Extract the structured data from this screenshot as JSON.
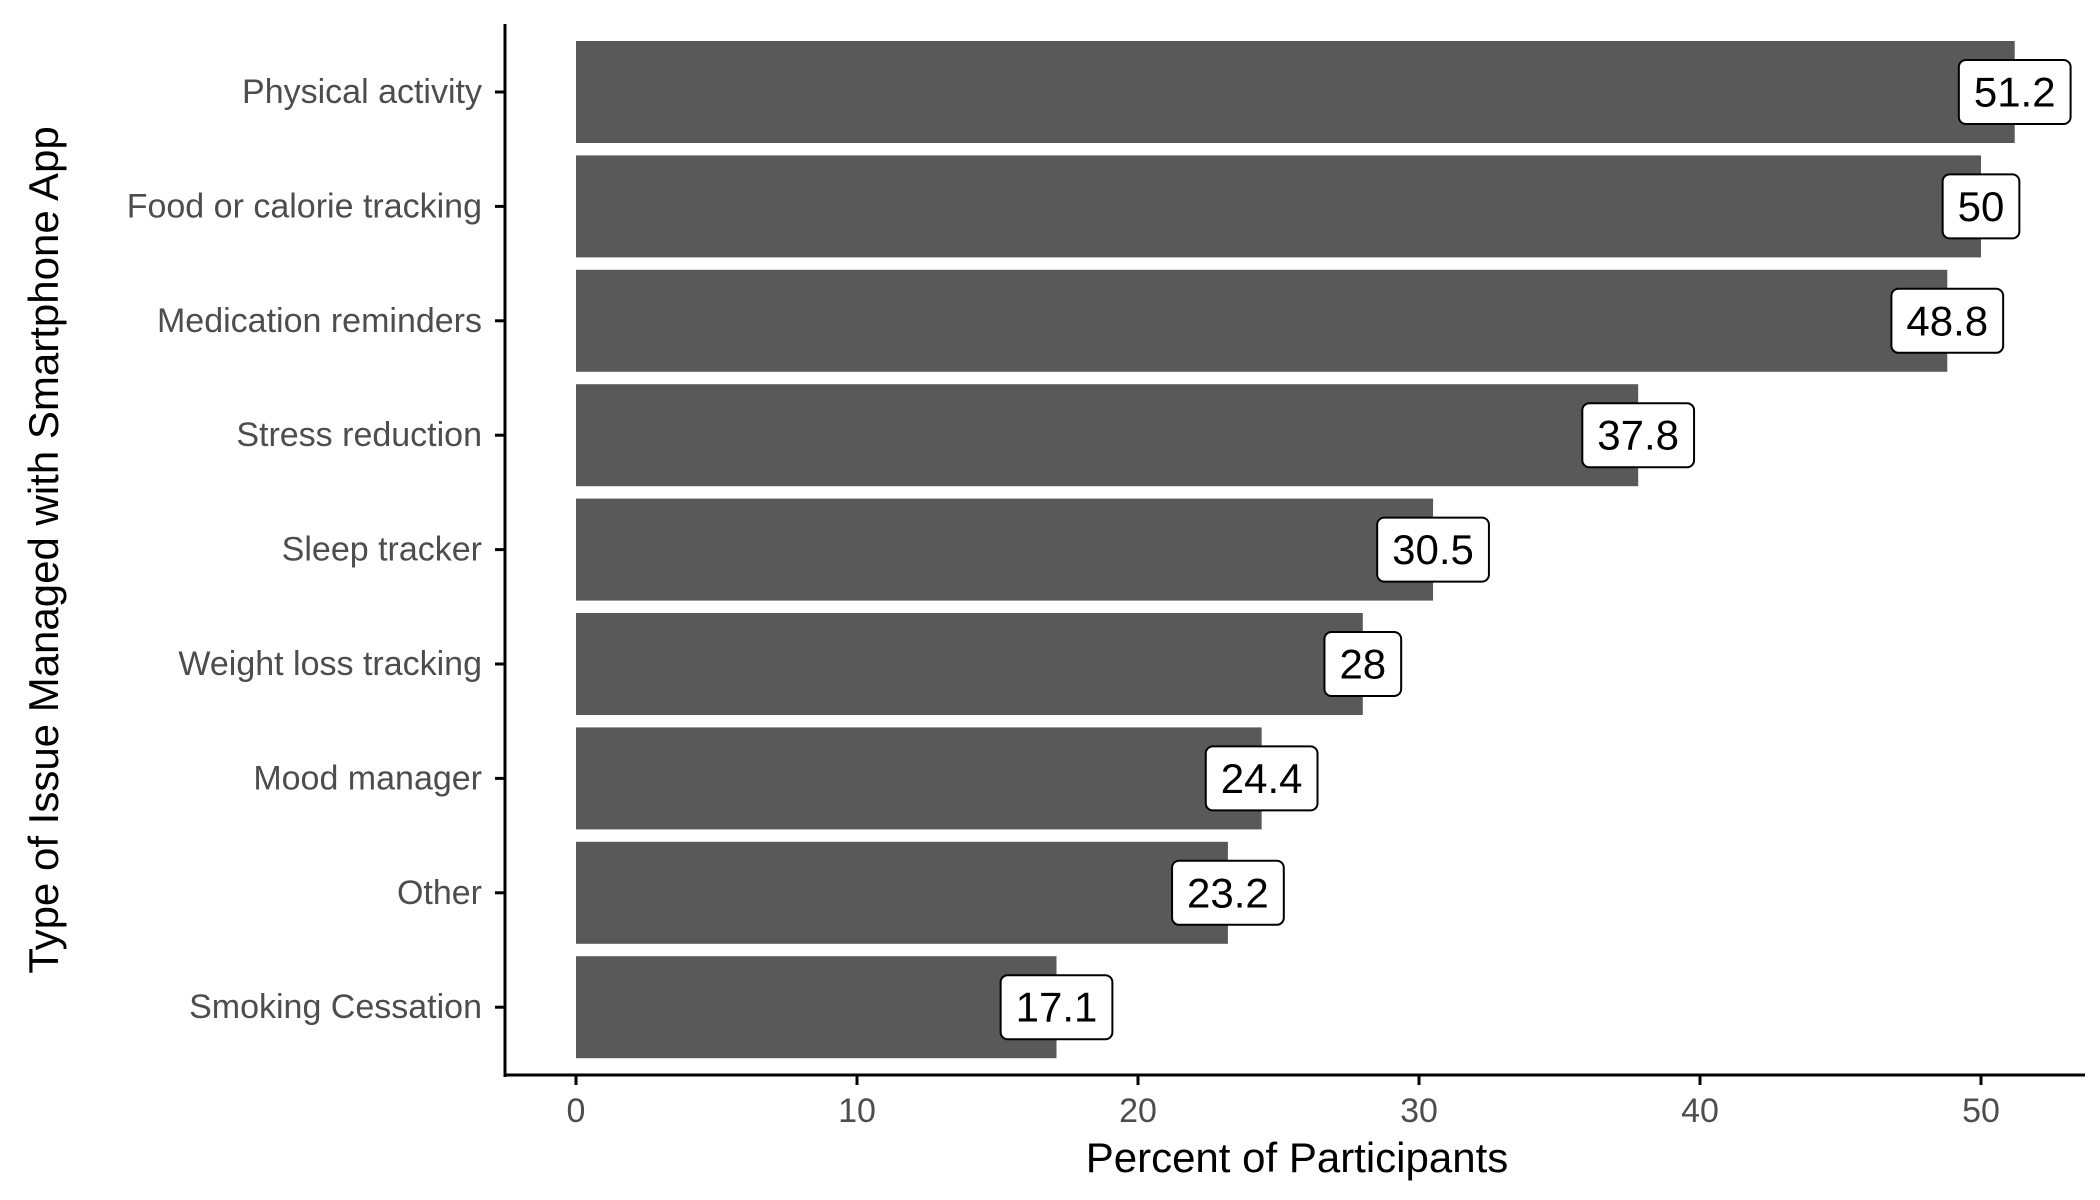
{
  "chart_data": {
    "type": "bar",
    "orientation": "horizontal",
    "title": "",
    "xlabel": "Percent of Participants",
    "ylabel": "Type of Issue Managed with Smartphone App",
    "categories": [
      "Physical activity",
      "Food or calorie tracking",
      "Medication reminders",
      "Stress reduction",
      "Sleep tracker",
      "Weight loss tracking",
      "Mood manager",
      "Other",
      "Smoking Cessation"
    ],
    "values": [
      51.2,
      50,
      48.8,
      37.8,
      30.5,
      28,
      24.4,
      23.2,
      17.1
    ],
    "data_labels": [
      "51.2",
      "50",
      "48.8",
      "37.8",
      "30.5",
      "28",
      "24.4",
      "23.2",
      "17.1"
    ],
    "xlim": [
      0,
      53
    ],
    "xticks": [
      0,
      10,
      20,
      30,
      40,
      50
    ],
    "xtick_labels": [
      "0",
      "10",
      "20",
      "30",
      "40",
      "50"
    ],
    "grid": false,
    "legend": "none",
    "colors": {
      "bar": "#595959",
      "label_box_fill": "#ffffff",
      "label_box_border": "#000000",
      "axis": "#000000",
      "tick_text": "#4d4d4d"
    }
  }
}
